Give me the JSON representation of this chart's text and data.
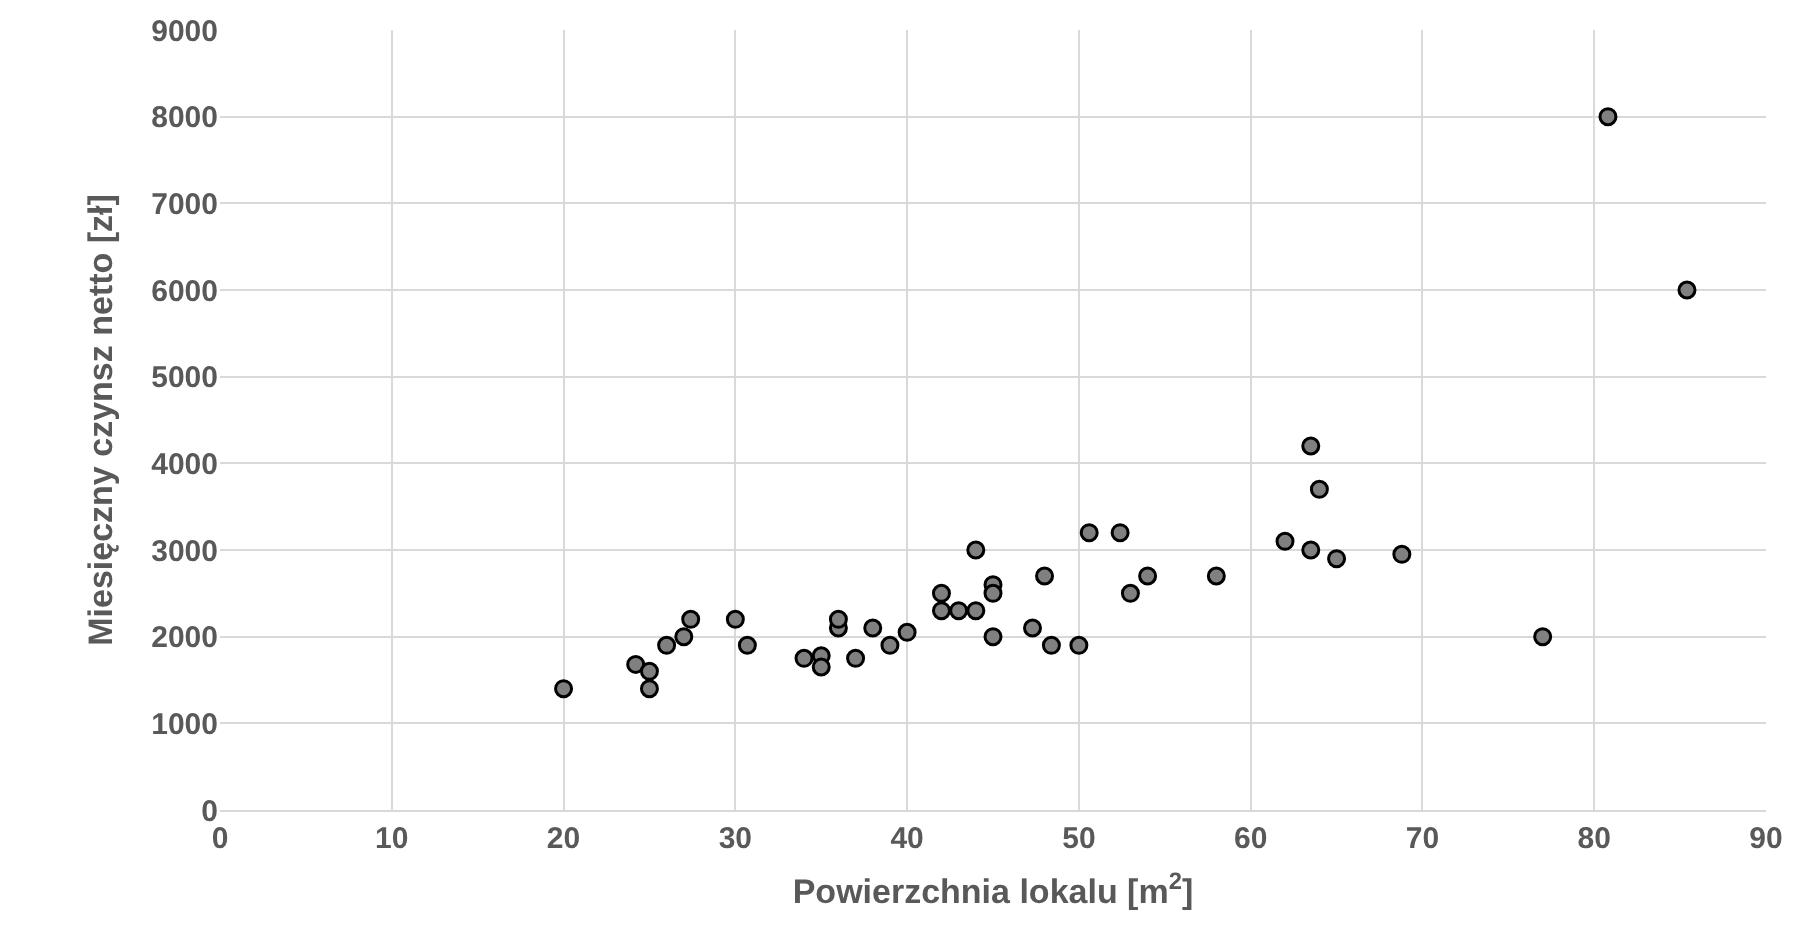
{
  "chart_data": {
    "type": "scatter",
    "xlabel": "Powierzchnia lokalu [m$^{2}$]",
    "ylabel": "Miesięczny czynsz netto [zł]",
    "x": [
      20,
      24.2,
      25,
      25,
      26,
      27,
      27.4,
      30,
      30.7,
      34,
      35,
      35,
      36,
      36,
      37,
      38,
      39,
      40,
      42,
      42,
      43,
      44,
      44,
      45,
      45,
      45,
      47.3,
      48,
      48.4,
      50,
      50.6,
      52.4,
      53,
      54,
      58,
      62,
      63.5,
      63.5,
      64,
      65,
      68.8,
      77,
      80.8,
      85.4
    ],
    "values": [
      1400,
      1680,
      1600,
      1400,
      1900,
      2000,
      2200,
      2200,
      1900,
      1750,
      1780,
      1650,
      2100,
      2200,
      1750,
      2100,
      1900,
      2050,
      2500,
      2300,
      2300,
      2300,
      3000,
      2600,
      2500,
      2000,
      2100,
      2700,
      1900,
      1900,
      3200,
      3200,
      2500,
      2700,
      2700,
      3100,
      4200,
      3000,
      3700,
      2900,
      2950,
      2000,
      8000,
      6000
    ],
    "color": "#808080",
    "marker": "circle",
    "grid": true,
    "xlim": [
      0,
      90
    ],
    "xticks": [
      0,
      10,
      20,
      30,
      40,
      50,
      60,
      70,
      80,
      90
    ],
    "ylim": [
      0,
      9000
    ],
    "yticks": [
      0,
      1000,
      2000,
      3000,
      4000,
      5000,
      6000,
      7000,
      8000,
      9000
    ]
  }
}
